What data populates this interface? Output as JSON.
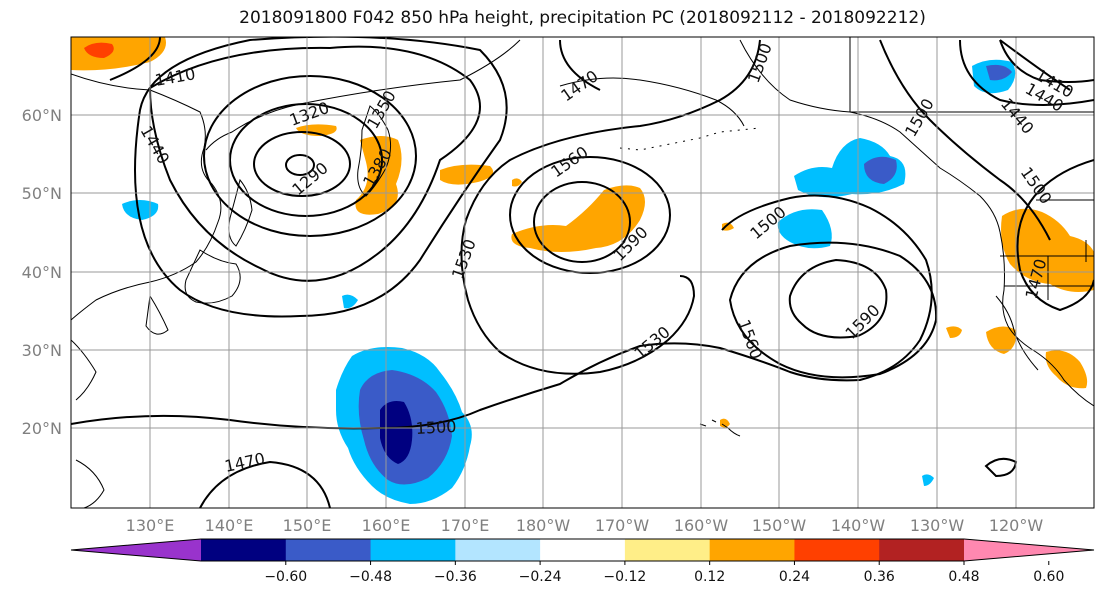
{
  "title": "2018091800 F042 850 hPa height, precipitation PC (2018092112 - 2018092212)",
  "lat_labels": [
    "60°N",
    "50°N",
    "40°N",
    "30°N",
    "20°N"
  ],
  "lon_labels": [
    "130°E",
    "140°E",
    "150°E",
    "160°E",
    "170°E",
    "180°W",
    "170°W",
    "160°W",
    "150°W",
    "140°W",
    "130°W",
    "120°W"
  ],
  "colorbar": {
    "colors": [
      "#9933cc",
      "#000080",
      "#3a5bc8",
      "#00bfff",
      "#b3e5ff",
      "#ffffff",
      "#ffee88",
      "#ffa500",
      "#ff4000",
      "#b22222",
      "#ff88b0"
    ],
    "tick_labels": [
      "−0.60",
      "−0.48",
      "−0.36",
      "−0.24",
      "−0.12",
      "0.12",
      "0.24",
      "0.36",
      "0.48",
      "0.60"
    ]
  },
  "contour_labels": [
    {
      "text": "1410"
    },
    {
      "text": "1440"
    },
    {
      "text": "1320"
    },
    {
      "text": "1290"
    },
    {
      "text": "1350"
    },
    {
      "text": "1380"
    },
    {
      "text": "1470"
    },
    {
      "text": "1500"
    },
    {
      "text": "1560"
    },
    {
      "text": "1590"
    },
    {
      "text": "1530"
    },
    {
      "text": "1500"
    },
    {
      "text": "1560"
    },
    {
      "text": "1590"
    },
    {
      "text": "1530"
    },
    {
      "text": "1500"
    },
    {
      "text": "1470"
    },
    {
      "text": "1410"
    },
    {
      "text": "1440"
    },
    {
      "text": "1470"
    },
    {
      "text": "1500"
    },
    {
      "text": "1440"
    },
    {
      "text": "1500"
    }
  ]
}
